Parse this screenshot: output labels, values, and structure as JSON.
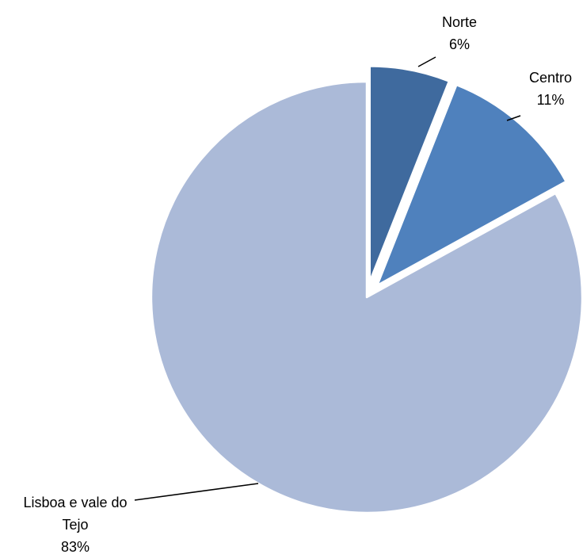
{
  "chart_data": {
    "type": "pie",
    "categories": [
      "Norte",
      "Centro",
      "Lisboa e vale do Tejo"
    ],
    "values": [
      6,
      11,
      83
    ],
    "value_labels": [
      "6%",
      "11%",
      "83%"
    ],
    "colors": [
      "#3f6a9e",
      "#4f81bd",
      "#abbad8"
    ]
  }
}
